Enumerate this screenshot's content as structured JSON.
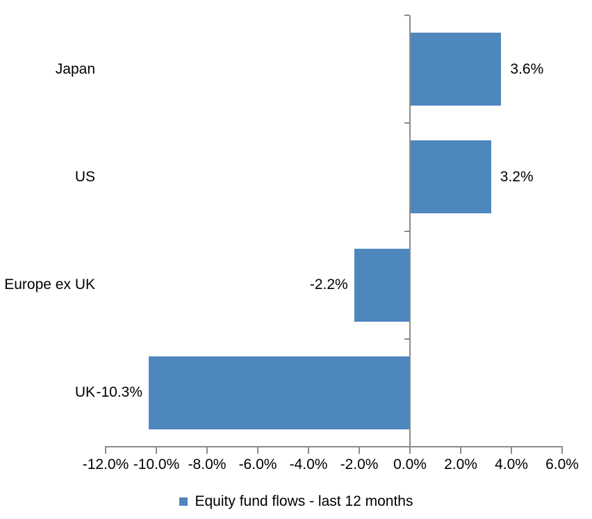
{
  "chart_data": {
    "type": "bar",
    "orientation": "horizontal",
    "title": "",
    "categories": [
      "Japan",
      "US",
      "Europe ex UK",
      "UK"
    ],
    "series": [
      {
        "name": "Equity fund flows - last 12 months",
        "values": [
          3.6,
          3.2,
          -2.2,
          -10.3
        ],
        "data_labels": [
          "3.6%",
          "3.2%",
          "-2.2%",
          "-10.3%"
        ]
      }
    ],
    "xlim": [
      -12,
      6
    ],
    "x_ticks": [
      -12,
      -10,
      -8,
      -6,
      -4,
      -2,
      0,
      2,
      4,
      6
    ],
    "x_tick_labels": [
      "-12.0%",
      "-10.0%",
      "-8.0%",
      "-6.0%",
      "-4.0%",
      "-2.0%",
      "0.0%",
      "2.0%",
      "4.0%",
      "6.0%"
    ],
    "grid": false,
    "legend_position": "bottom",
    "bar_color": "#4E86BE",
    "axis_color": "#8A8A8A",
    "text_color": "#000000",
    "background_color": "#FFFFFF"
  },
  "legend": {
    "label": "Equity fund flows - last 12 months",
    "marker_color": "#4E86BE"
  }
}
